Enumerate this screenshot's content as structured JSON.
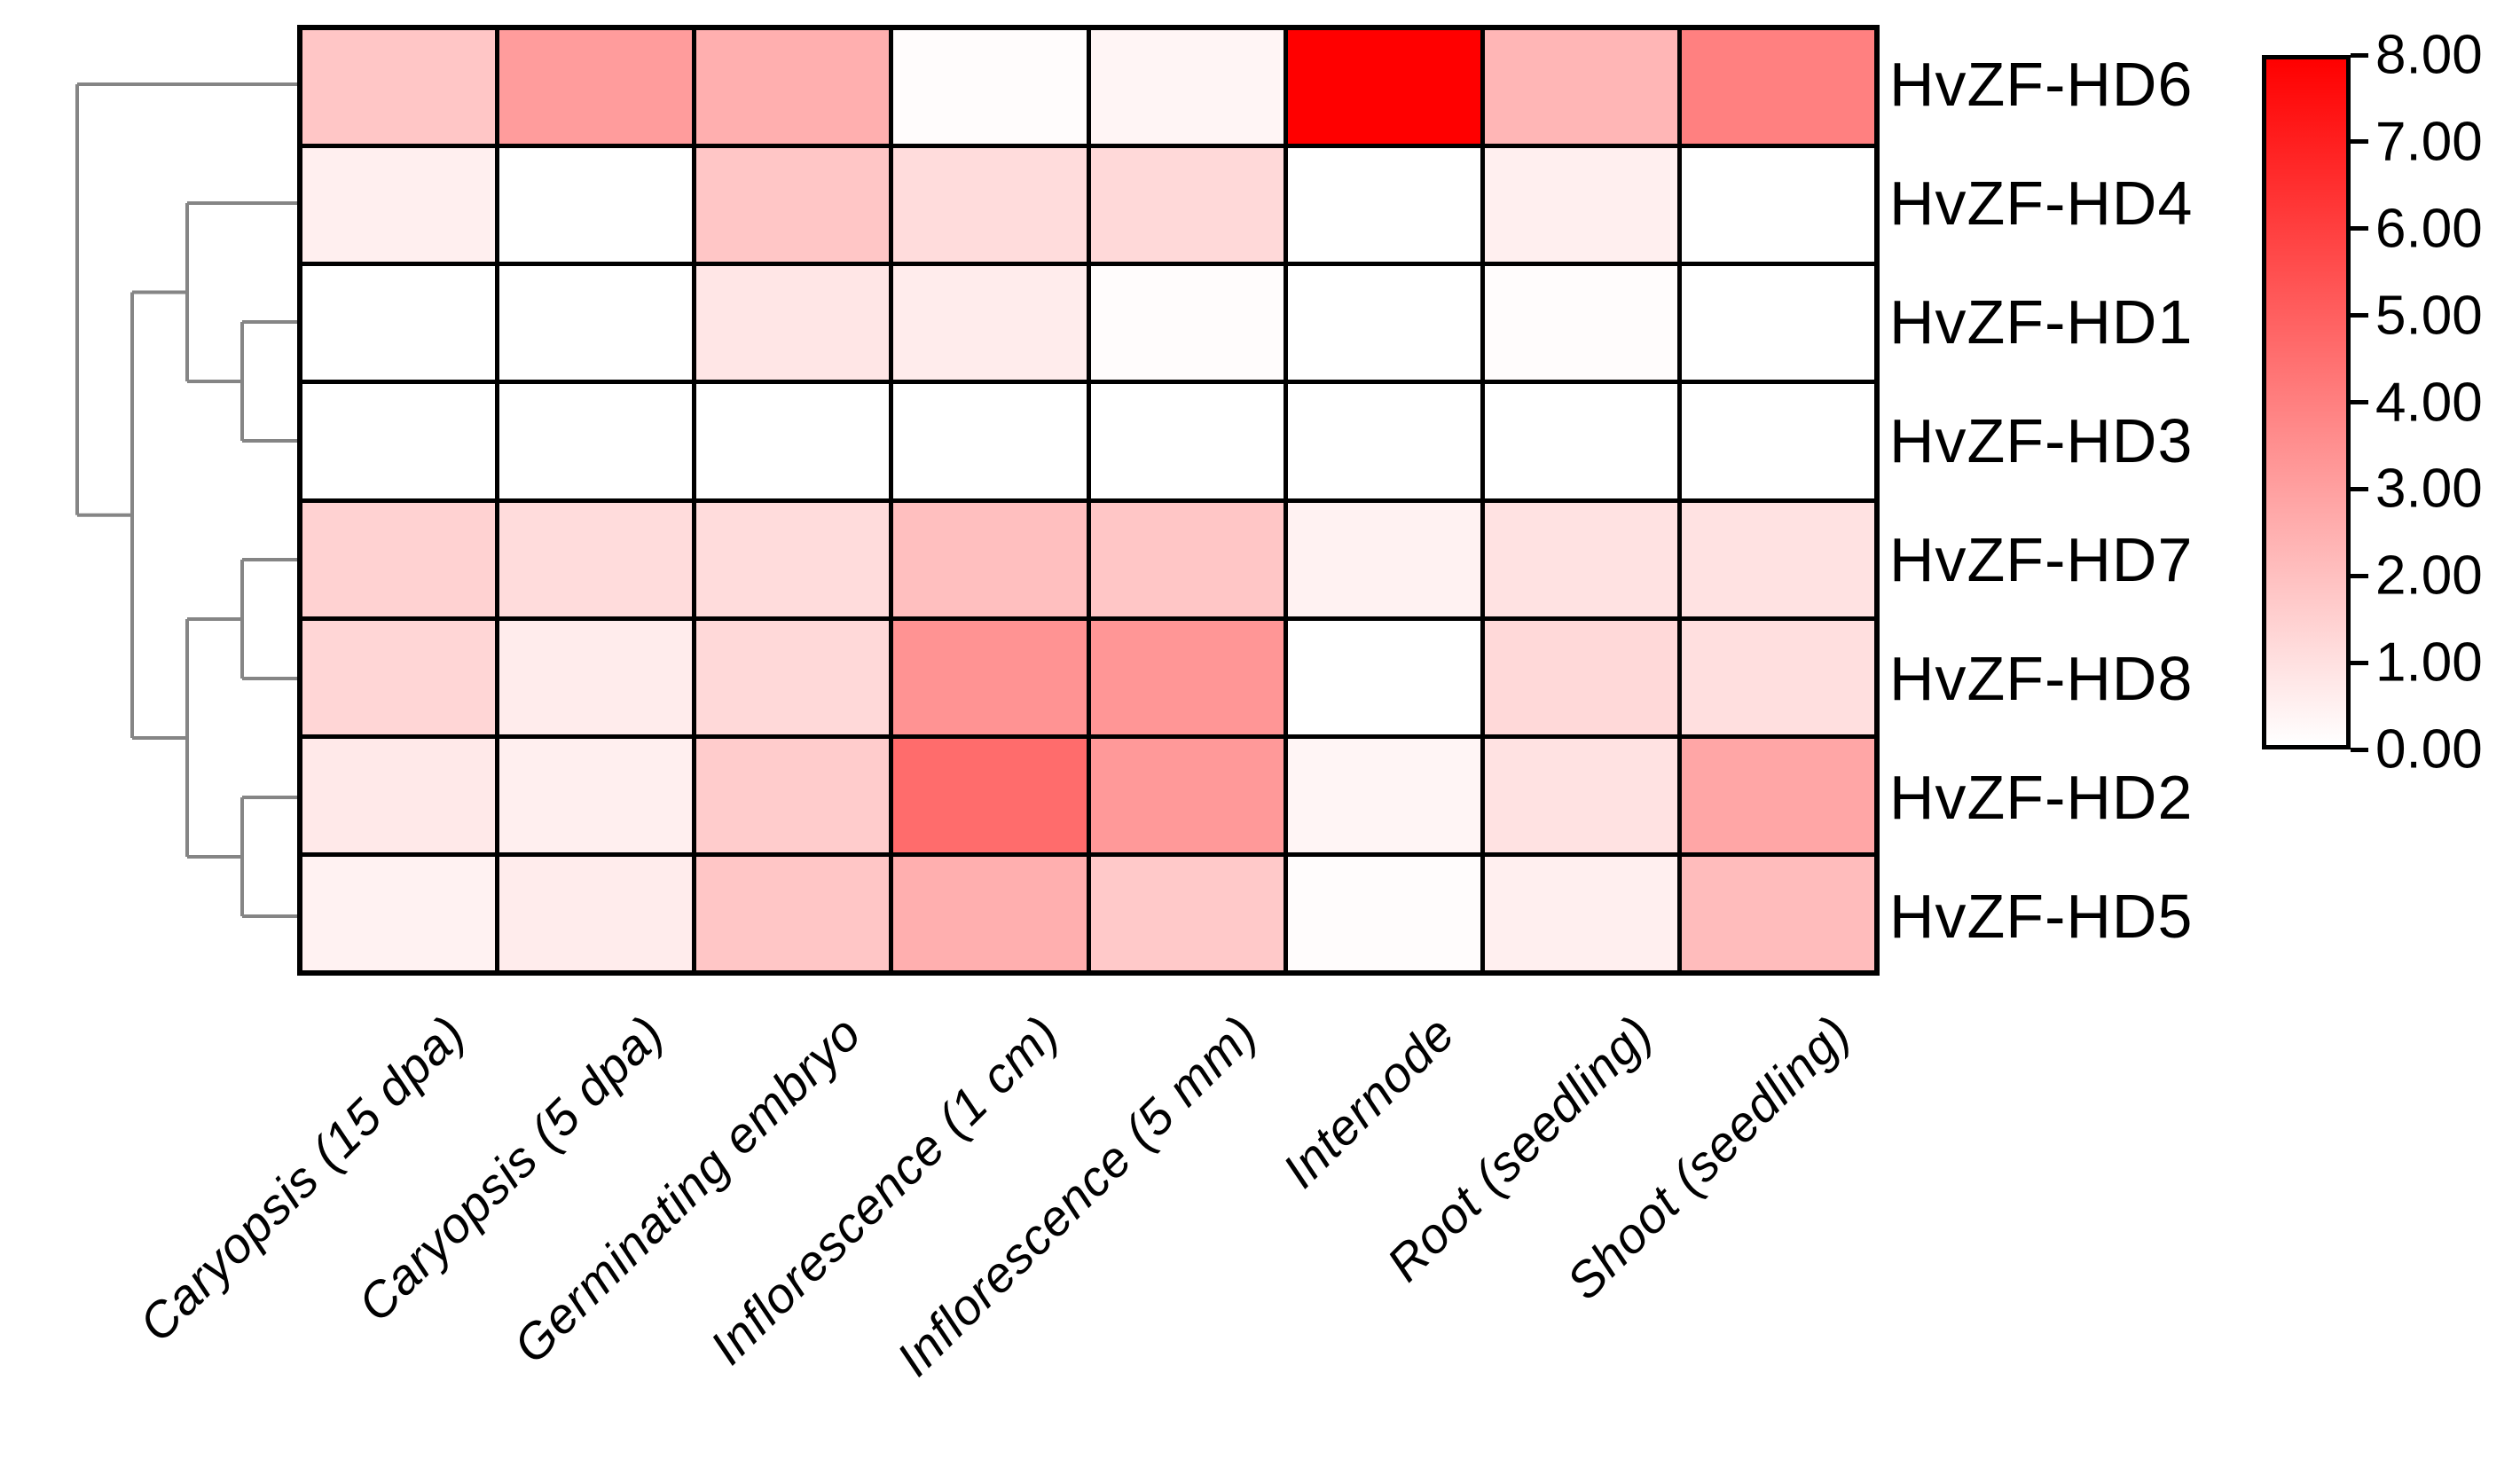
{
  "chart_data": {
    "type": "heatmap",
    "title": "",
    "rows": [
      "HvZF-HD6",
      "HvZF-HD4",
      "HvZF-HD1",
      "HvZF-HD3",
      "HvZF-HD7",
      "HvZF-HD8",
      "HvZF-HD2",
      "HvZF-HD5"
    ],
    "columns": [
      "Caryopsis (15 dpa)",
      "Caryopsis (5 dpa)",
      "Germinating embryo",
      "Inflorescence (1 cm)",
      "Inflorescence (5 mm)",
      "Internode",
      "Root (seedling)",
      "Shoot (seedling)"
    ],
    "values": [
      [
        1.8,
        3.1,
        2.5,
        0.1,
        0.3,
        8.0,
        2.3,
        4.0
      ],
      [
        0.5,
        0.0,
        1.8,
        1.1,
        1.2,
        0.0,
        0.5,
        0.0
      ],
      [
        0.0,
        0.0,
        0.8,
        0.6,
        0.1,
        0.0,
        0.1,
        0.0
      ],
      [
        0.0,
        0.0,
        0.0,
        0.0,
        0.0,
        0.0,
        0.0,
        0.0
      ],
      [
        1.4,
        1.1,
        1.1,
        2.0,
        1.8,
        0.4,
        0.9,
        0.9
      ],
      [
        1.3,
        0.6,
        1.2,
        3.4,
        3.3,
        0.0,
        1.2,
        1.0
      ],
      [
        0.7,
        0.5,
        1.6,
        4.6,
        3.2,
        0.3,
        0.9,
        2.8
      ],
      [
        0.4,
        0.6,
        1.8,
        2.5,
        1.7,
        0.1,
        0.5,
        2.1
      ]
    ],
    "value_range": [
      0,
      8
    ],
    "colorbar": {
      "tick_labels": [
        "8.00",
        "7.00",
        "6.00",
        "5.00",
        "4.00",
        "3.00",
        "2.00",
        "1.00",
        "0.00"
      ],
      "gradient_top_color": "#ff0000",
      "gradient_bottom_color": "#ffffff",
      "position": "right"
    },
    "colors": {
      "cell_low": "#ffffff",
      "cell_high": "#ff0000",
      "cell_border": "#000000",
      "dendrogram_line": "#858585",
      "label_color": "#000000",
      "background": "#ffffff"
    },
    "dendrogram": {
      "side": "left",
      "structure_newick": "(HvZF-HD6,((HvZF-HD4,(HvZF-HD1,HvZF-HD3)),((HvZF-HD7,HvZF-HD8),(HvZF-HD2,HvZF-HD5))))",
      "tree": [
        "HvZF-HD6",
        [
          [
            "HvZF-HD4",
            [
              "HvZF-HD1",
              "HvZF-HD3"
            ]
          ],
          [
            [
              "HvZF-HD7",
              "HvZF-HD8"
            ],
            [
              "HvZF-HD2",
              "HvZF-HD5"
            ]
          ]
        ]
      ]
    },
    "x_tick_rotation_deg": 45,
    "x_tick_style": "italic",
    "grid": true,
    "legend_position": "right"
  }
}
